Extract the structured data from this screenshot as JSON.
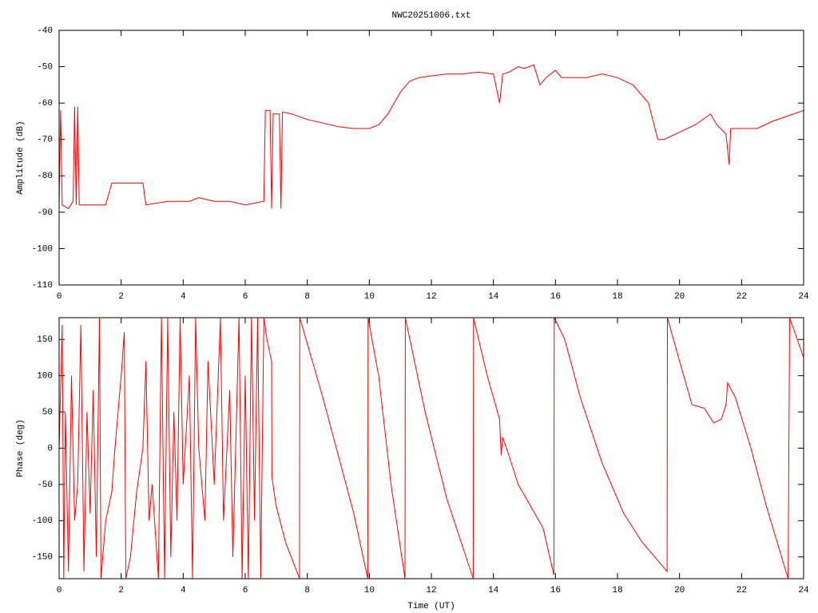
{
  "chart_data": [
    {
      "type": "line",
      "title": "NWC20251006.txt",
      "ylabel": "Amplitude (dB)",
      "color": "#ff0000",
      "xlim": [
        0,
        24
      ],
      "xticks": [
        0,
        2,
        4,
        6,
        8,
        10,
        12,
        14,
        16,
        18,
        20,
        22,
        24
      ],
      "ylim": [
        -110,
        -40
      ],
      "yticks": [
        -110,
        -100,
        -90,
        -80,
        -70,
        -60,
        -50,
        -40
      ],
      "x": [
        0,
        0.05,
        0.1,
        0.3,
        0.45,
        0.5,
        0.55,
        0.6,
        0.65,
        1.0,
        1.5,
        1.6,
        1.7,
        2.2,
        2.7,
        2.8,
        3.5,
        4.2,
        4.5,
        5.0,
        5.5,
        6.0,
        6.6,
        6.65,
        6.8,
        6.85,
        6.9,
        7.1,
        7.15,
        7.2,
        7.5,
        8,
        8.5,
        9,
        9.5,
        10,
        10.3,
        10.6,
        11,
        11.3,
        11.6,
        12,
        12.5,
        13,
        13.5,
        14,
        14.2,
        14.3,
        14.5,
        14.8,
        15,
        15.3,
        15.5,
        15.7,
        16,
        16.2,
        16.5,
        17,
        17.5,
        18,
        18.5,
        19,
        19.3,
        19.5,
        20,
        20.5,
        21,
        21.2,
        21.5,
        21.6,
        21.65,
        22,
        22.5,
        23,
        23.5,
        24
      ],
      "values": [
        -88,
        -62,
        -88,
        -89,
        -87,
        -61,
        -88,
        -61,
        -88,
        -88,
        -88,
        -85,
        -82,
        -82,
        -82,
        -88,
        -87,
        -87,
        -86,
        -87,
        -87,
        -88,
        -87,
        -62,
        -62,
        -89,
        -63,
        -63,
        -89,
        -62.5,
        -63,
        -64.5,
        -65.5,
        -66.5,
        -67,
        -67,
        -66,
        -63,
        -57,
        -54,
        -53,
        -52.5,
        -52,
        -52,
        -51.5,
        -52,
        -60,
        -52,
        -51.5,
        -50,
        -50.5,
        -49.5,
        -55,
        -53,
        -51,
        -53,
        -53,
        -53,
        -52,
        -53,
        -55,
        -60,
        -70,
        -70,
        -68,
        -66,
        -63,
        -66,
        -68.5,
        -77,
        -67,
        -67,
        -67,
        -65,
        -63.5,
        -62
      ]
    },
    {
      "type": "line",
      "xlabel": "Time (UT)",
      "ylabel": "Phase (deg)",
      "color": "#ff0000",
      "xlim": [
        0,
        24
      ],
      "xticks": [
        0,
        2,
        4,
        6,
        8,
        10,
        12,
        14,
        16,
        18,
        20,
        22,
        24
      ],
      "ylim": [
        -180,
        180
      ],
      "yticks": [
        -150,
        -100,
        -50,
        0,
        50,
        100,
        150
      ],
      "x": [
        0,
        0.1,
        0.15,
        0.2,
        0.3,
        0.4,
        0.5,
        0.6,
        0.7,
        0.8,
        0.9,
        1.0,
        1.1,
        1.2,
        1.3,
        1.35,
        1.5,
        1.7,
        1.8,
        2.0,
        2.1,
        2.15,
        2.3,
        2.5,
        2.7,
        2.8,
        2.9,
        3.0,
        3.2,
        3.3,
        3.4,
        3.5,
        3.6,
        3.7,
        3.8,
        3.9,
        4.0,
        4.2,
        4.3,
        4.4,
        4.5,
        4.7,
        4.8,
        5.0,
        5.2,
        5.3,
        5.5,
        5.6,
        5.8,
        5.9,
        6.0,
        6.1,
        6.2,
        6.3,
        6.4,
        6.5,
        6.6,
        6.7,
        6.85,
        6.86,
        7.0,
        7.3,
        7.75,
        7.76,
        8.5,
        9.5,
        9.95,
        9.96,
        10.3,
        10.7,
        11.15,
        11.16,
        11.8,
        12.5,
        13.35,
        13.36,
        13.8,
        14.2,
        14.25,
        14.3,
        14.5,
        14.8,
        15.2,
        15.6,
        15.95,
        15.96,
        16.3,
        16.8,
        17.5,
        18.2,
        18.8,
        19.6,
        19.61,
        20.0,
        20.4,
        20.8,
        21.1,
        21.35,
        21.5,
        21.55,
        21.8,
        22.3,
        22.8,
        23.5,
        23.55,
        24
      ],
      "values": [
        0,
        170,
        -180,
        50,
        -170,
        100,
        -100,
        -50,
        170,
        -170,
        50,
        -90,
        80,
        -150,
        180,
        -180,
        -100,
        -60,
        0,
        100,
        160,
        -180,
        -150,
        -60,
        0,
        120,
        -100,
        -50,
        -180,
        180,
        -180,
        180,
        -150,
        50,
        -100,
        180,
        -50,
        100,
        -180,
        180,
        0,
        -100,
        120,
        -50,
        180,
        -100,
        80,
        -150,
        180,
        -180,
        100,
        -180,
        180,
        -100,
        180,
        -180,
        180,
        150,
        120,
        -40,
        -80,
        -130,
        -180,
        180,
        70,
        -90,
        -180,
        180,
        100,
        -50,
        -180,
        180,
        50,
        -70,
        -180,
        180,
        100,
        40,
        -10,
        15,
        -10,
        -50,
        -80,
        -110,
        -175,
        180,
        150,
        70,
        -20,
        -90,
        -130,
        -170,
        180,
        120,
        60,
        55,
        35,
        40,
        60,
        90,
        70,
        0,
        -80,
        -180,
        180,
        125
      ]
    }
  ]
}
